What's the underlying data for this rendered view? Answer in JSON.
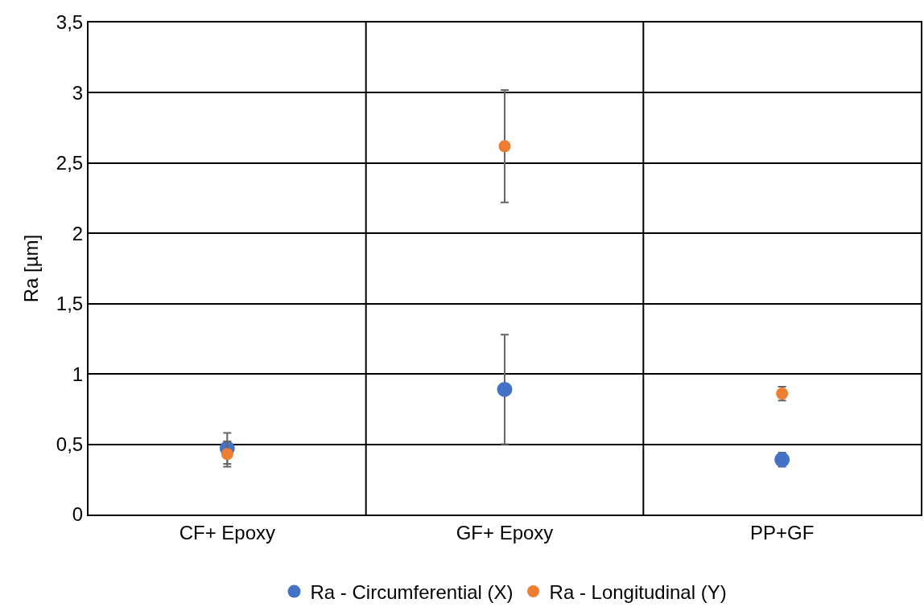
{
  "chart_data": {
    "type": "scatter",
    "ylabel": "Ra [µm]",
    "categories": [
      "CF+ Epoxy",
      "GF+ Epoxy",
      "PP+GF"
    ],
    "series": [
      {
        "name": "Ra - Circumferential (X)",
        "color": "#4472c4",
        "values": [
          0.47,
          0.89,
          0.39
        ],
        "errors": [
          0.11,
          0.39,
          0.05
        ]
      },
      {
        "name": "Ra - Longitudinal (Y)",
        "color": "#ed7d31",
        "values": [
          0.43,
          2.62,
          0.86
        ],
        "errors": [
          0.09,
          0.4,
          0.05
        ]
      }
    ],
    "ylim": [
      0,
      3.5
    ],
    "yticks": [
      {
        "value": 0,
        "label": "0"
      },
      {
        "value": 0.5,
        "label": "0,5"
      },
      {
        "value": 1,
        "label": "1"
      },
      {
        "value": 1.5,
        "label": "1,5"
      },
      {
        "value": 2,
        "label": "2"
      },
      {
        "value": 2.5,
        "label": "2,5"
      },
      {
        "value": 3,
        "label": "3"
      },
      {
        "value": 3.5,
        "label": "3,5"
      }
    ],
    "grid": true,
    "legend": "bottom",
    "marker": "circle"
  }
}
